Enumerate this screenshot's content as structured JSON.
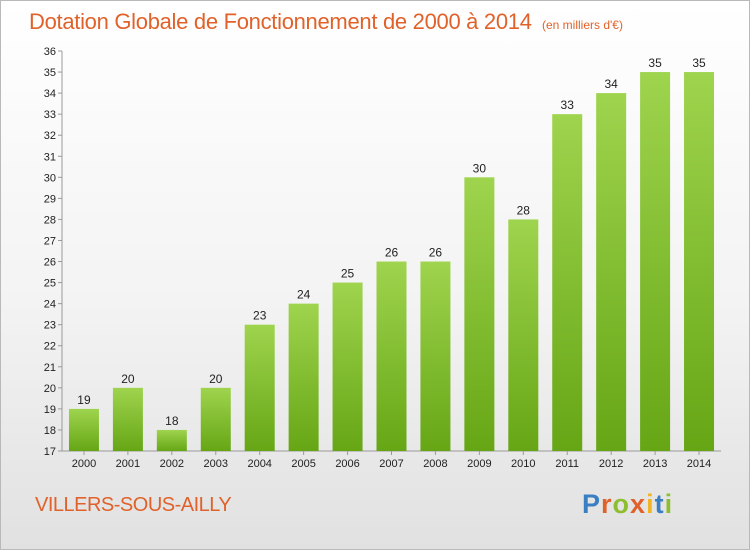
{
  "header": {
    "title": "Dotation Globale de Fonctionnement de 2000 à 2014",
    "subtitle": "(en milliers d'€)"
  },
  "footer": {
    "commune": "VILLERS-SOUS-AILLY",
    "logo": {
      "letters": [
        "P",
        "r",
        "o",
        "x",
        "i",
        "t",
        "i"
      ],
      "colors": [
        "#3a7fc1",
        "#e0622a",
        "#8dbe2f",
        "#e0622a",
        "#f0b428",
        "#3a7fc1",
        "#8dbe2f"
      ]
    }
  },
  "chart_data": {
    "type": "bar",
    "categories": [
      "2000",
      "2001",
      "2002",
      "2003",
      "2004",
      "2005",
      "2006",
      "2007",
      "2008",
      "2009",
      "2010",
      "2011",
      "2012",
      "2013",
      "2014"
    ],
    "values": [
      19,
      20,
      18,
      20,
      23,
      24,
      25,
      26,
      26,
      30,
      28,
      33,
      34,
      35,
      35
    ],
    "ylim": [
      17,
      36
    ],
    "yticks": [
      17,
      18,
      19,
      20,
      21,
      22,
      23,
      24,
      25,
      26,
      27,
      28,
      29,
      30,
      31,
      32,
      33,
      34,
      35,
      36
    ],
    "grid": false,
    "data_labels": true,
    "colors": {
      "bar_light": "#9fd44e",
      "bar_dark": "#66a615",
      "axis": "#9a9a9a"
    }
  }
}
